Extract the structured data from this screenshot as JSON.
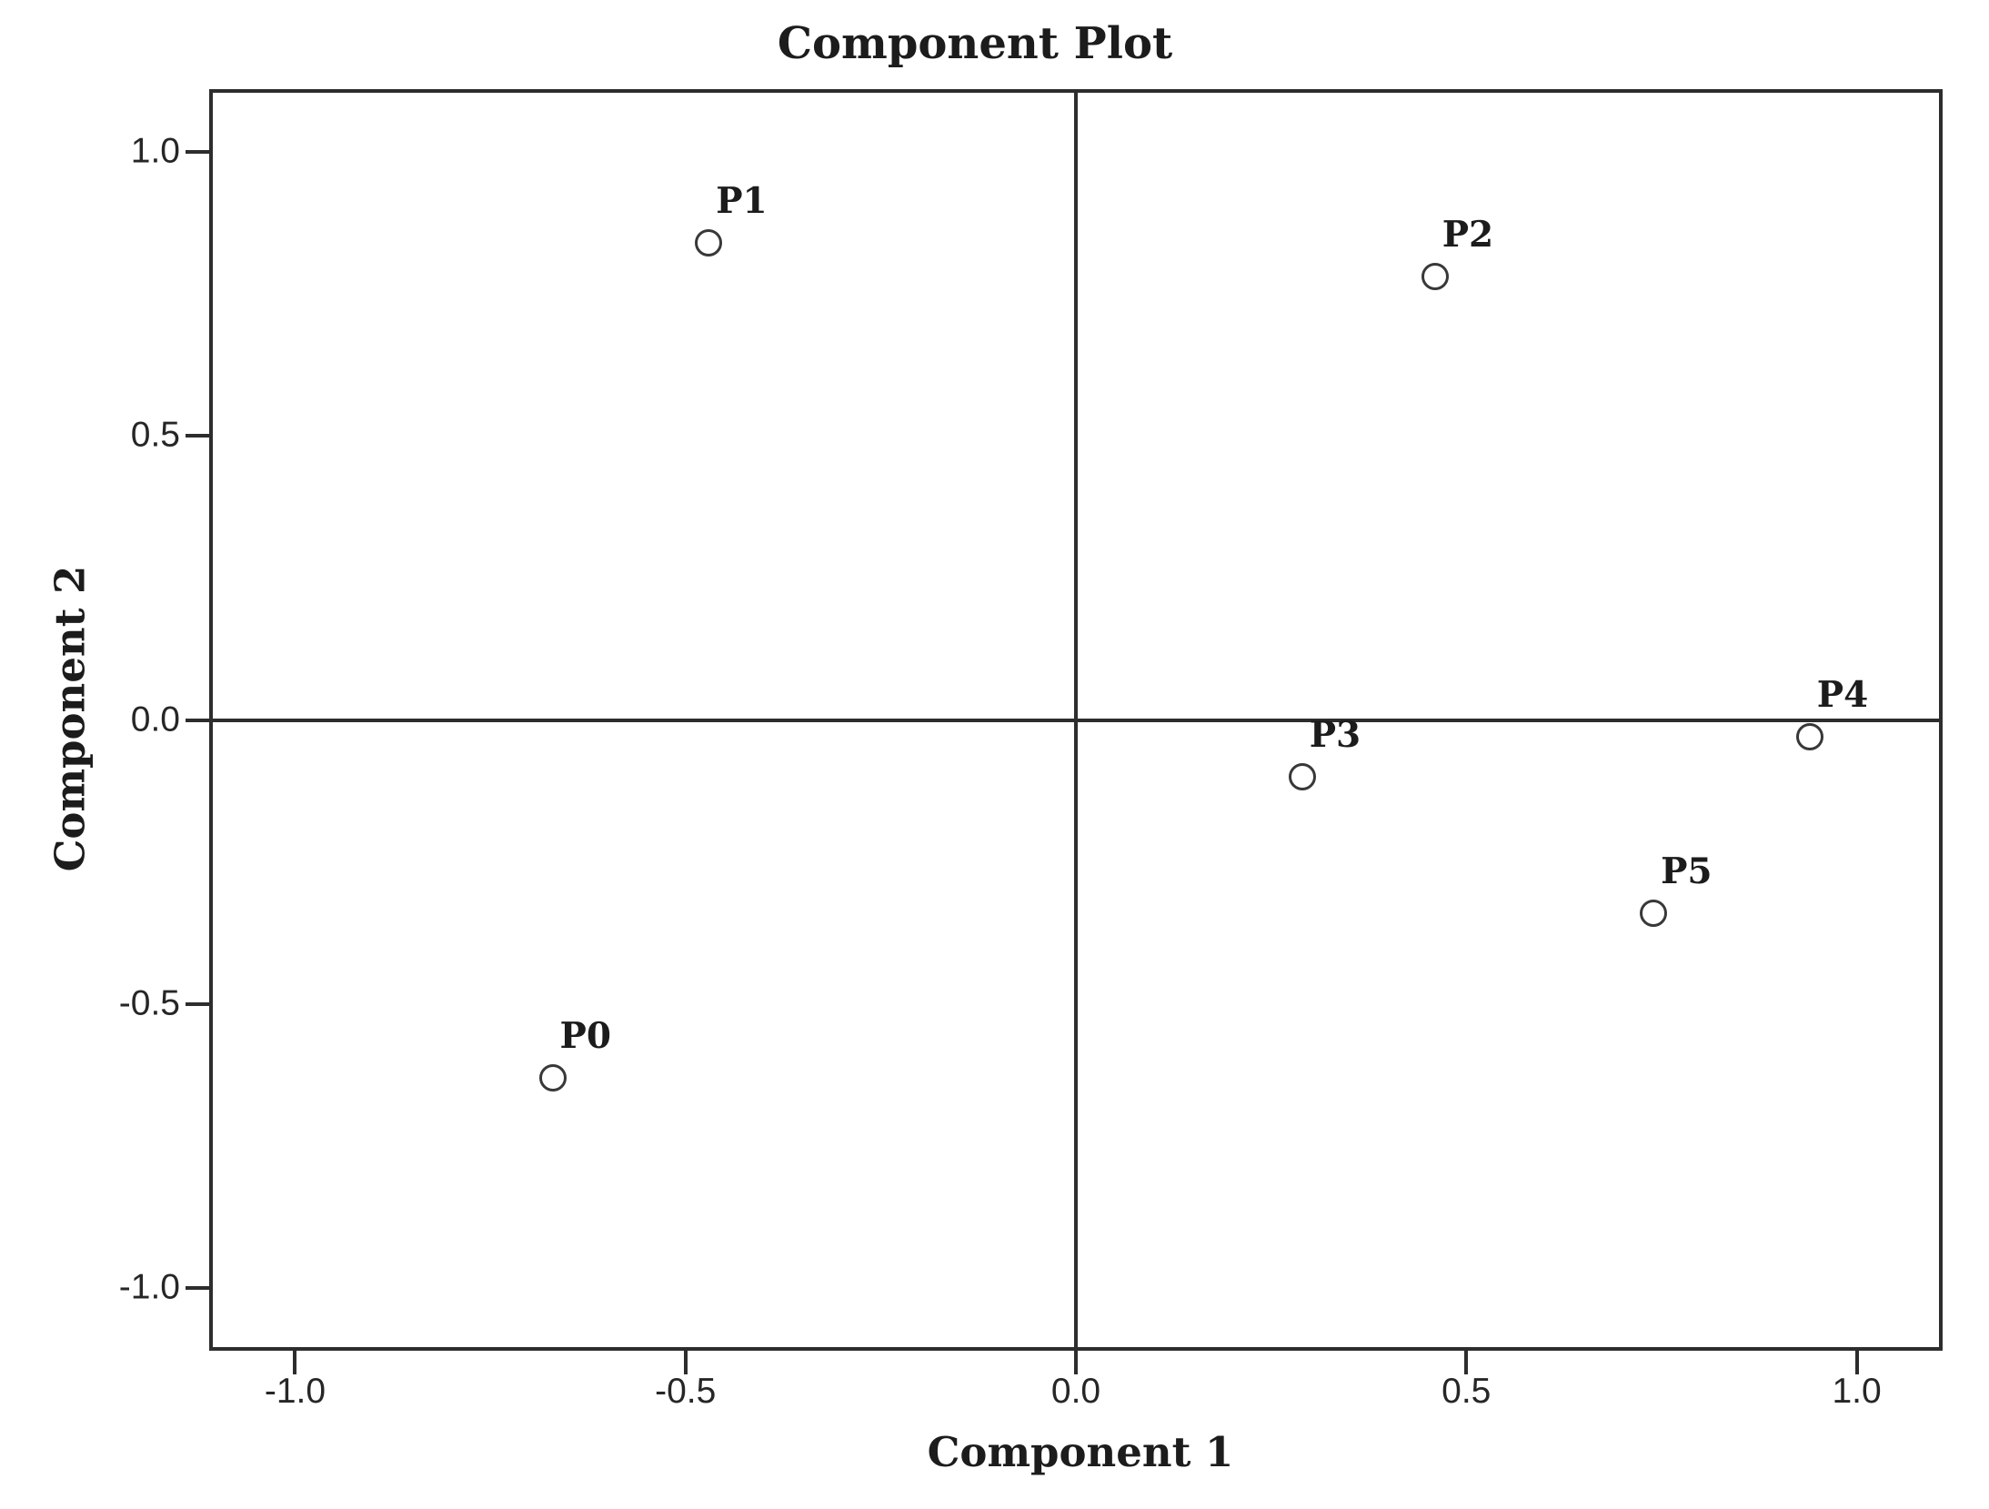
{
  "chart_data": {
    "type": "scatter",
    "title": "Component Plot",
    "xlabel": "Component 1",
    "ylabel": "Component 2",
    "xlim": [
      -1.11,
      1.11
    ],
    "ylim": [
      -1.11,
      1.11
    ],
    "grid": false,
    "legend": false,
    "reference_lines": {
      "x": 0.0,
      "y": 0.0
    },
    "x_ticks": [
      {
        "value": -1.0,
        "label": "-1.0"
      },
      {
        "value": -0.5,
        "label": "-0.5"
      },
      {
        "value": 0.0,
        "label": "0.0"
      },
      {
        "value": 0.5,
        "label": "0.5"
      },
      {
        "value": 1.0,
        "label": "1.0"
      }
    ],
    "y_ticks": [
      {
        "value": 1.0,
        "label": "1.0"
      },
      {
        "value": 0.5,
        "label": "0.5"
      },
      {
        "value": 0.0,
        "label": "0.0"
      },
      {
        "value": -0.5,
        "label": "-0.5"
      },
      {
        "value": -1.0,
        "label": "-1.0"
      }
    ],
    "points": [
      {
        "label": "P0",
        "x": -0.67,
        "y": -0.63
      },
      {
        "label": "P1",
        "x": -0.47,
        "y": 0.84
      },
      {
        "label": "P2",
        "x": 0.46,
        "y": 0.78
      },
      {
        "label": "P3",
        "x": 0.29,
        "y": -0.1
      },
      {
        "label": "P4",
        "x": 0.94,
        "y": -0.03
      },
      {
        "label": "P5",
        "x": 0.74,
        "y": -0.34
      }
    ],
    "marker": {
      "shape": "circle",
      "fill": "#ffffff",
      "stroke": "#383838"
    },
    "colors": {
      "line": "#2d2d2d",
      "text": "#1c1c1c"
    }
  }
}
